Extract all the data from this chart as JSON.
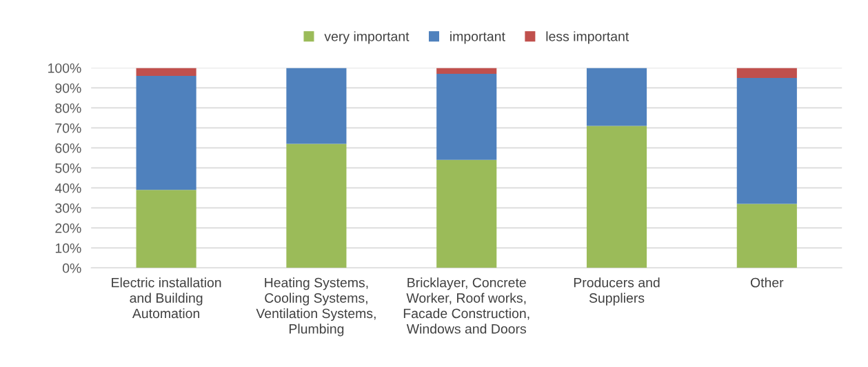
{
  "chart_data": {
    "type": "bar",
    "stacked": true,
    "categories": [
      "Electric installation\nand Building\nAutomation",
      "Heating Systems,\nCooling Systems,\nVentilation Systems,\nPlumbing",
      "Bricklayer, Concrete\nWorker, Roof works,\nFacade Construction,\nWindows and Doors",
      "Producers and\nSuppliers",
      "Other"
    ],
    "series": [
      {
        "name": "very important",
        "color": "#9bbb59",
        "values": [
          39,
          62,
          54,
          71,
          32
        ]
      },
      {
        "name": "important",
        "color": "#4f81bd",
        "values": [
          57,
          38,
          43,
          29,
          63
        ]
      },
      {
        "name": "less important",
        "color": "#c0504d",
        "values": [
          4,
          0,
          3,
          0,
          5
        ]
      }
    ],
    "ylim": [
      0,
      100
    ],
    "yticks": [
      {
        "value": 0,
        "label": "0%"
      },
      {
        "value": 10,
        "label": "10%"
      },
      {
        "value": 20,
        "label": "20%"
      },
      {
        "value": 30,
        "label": "30%"
      },
      {
        "value": 40,
        "label": "40%"
      },
      {
        "value": 50,
        "label": "50%"
      },
      {
        "value": 60,
        "label": "60%"
      },
      {
        "value": 70,
        "label": "70%"
      },
      {
        "value": 80,
        "label": "80%"
      },
      {
        "value": 90,
        "label": "90%"
      },
      {
        "value": 100,
        "label": "100%"
      }
    ],
    "grid": "y",
    "legend": "top"
  }
}
